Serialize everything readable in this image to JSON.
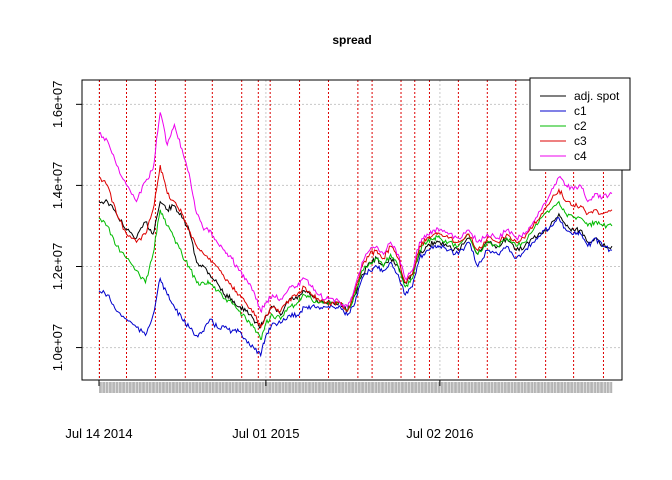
{
  "chart_data": {
    "type": "line",
    "title": "spread",
    "xlabel": "",
    "ylabel": "",
    "x_range": [
      "2014-07-14",
      "2017-06-30"
    ],
    "ylim": [
      9200000,
      16600000
    ],
    "y_ticks": [
      10000000,
      12000000,
      14000000,
      16000000
    ],
    "y_tick_labels": [
      "1.0e+07",
      "1.2e+07",
      "1.4e+07",
      "1.6e+07"
    ],
    "x_ticks": [
      "2014-07-14",
      "2015-07-01",
      "2016-07-02"
    ],
    "x_tick_labels": [
      "Jul 14 2014",
      "Jul 01 2015",
      "Jul 02 2016"
    ],
    "grid": true,
    "legend_position": "top-right",
    "colors": {
      "adj_spot": "#000000",
      "c1": "#0000cc",
      "c2": "#00bb00",
      "c3": "#dd0000",
      "c4": "#ee00ee",
      "roll_lines": "#dd0000",
      "grid": "#c8c8c8",
      "rug": "#b4b4b4"
    },
    "roll_dates": [
      "2014-07-15",
      "2014-09-10",
      "2014-11-10",
      "2015-01-12",
      "2015-03-10",
      "2015-05-11",
      "2015-06-15",
      "2015-07-10",
      "2015-09-10",
      "2015-11-10",
      "2016-01-11",
      "2016-02-10",
      "2016-04-11",
      "2016-05-10",
      "2016-06-10",
      "2016-08-10",
      "2016-10-10",
      "2016-12-09",
      "2017-02-10",
      "2017-04-10",
      "2017-06-12"
    ],
    "series": [
      {
        "name": "adj. spot",
        "x": [
          "2014-07-14",
          "2014-08-01",
          "2014-08-20",
          "2014-09-10",
          "2014-10-01",
          "2014-10-20",
          "2014-11-05",
          "2014-11-20",
          "2014-12-05",
          "2014-12-20",
          "2015-01-05",
          "2015-01-20",
          "2015-02-05",
          "2015-02-20",
          "2015-03-05",
          "2015-03-20",
          "2015-04-05",
          "2015-04-20",
          "2015-05-05",
          "2015-05-20",
          "2015-06-05",
          "2015-06-20",
          "2015-07-01",
          "2015-07-15",
          "2015-08-01",
          "2015-08-20",
          "2015-09-05",
          "2015-09-20",
          "2015-10-05",
          "2015-10-20",
          "2015-11-05",
          "2015-11-20",
          "2015-12-05",
          "2015-12-20",
          "2016-01-05",
          "2016-01-20",
          "2016-02-05",
          "2016-02-20",
          "2016-03-05",
          "2016-03-20",
          "2016-04-05",
          "2016-04-20",
          "2016-05-05",
          "2016-05-20",
          "2016-06-05",
          "2016-06-20",
          "2016-07-02",
          "2016-07-20",
          "2016-08-10",
          "2016-09-01",
          "2016-09-20",
          "2016-10-10",
          "2016-11-01",
          "2016-11-20",
          "2016-12-10",
          "2016-12-28",
          "2017-01-15",
          "2017-02-01",
          "2017-02-20",
          "2017-03-10",
          "2017-03-25",
          "2017-04-10",
          "2017-04-25",
          "2017-05-10",
          "2017-05-25",
          "2017-06-10",
          "2017-06-30"
        ],
        "values": [
          13600000,
          13600000,
          13300000,
          12900000,
          12700000,
          13100000,
          12800000,
          13600000,
          13400000,
          13500000,
          13200000,
          12900000,
          12100000,
          12000000,
          11800000,
          11600000,
          11300000,
          11200000,
          11000000,
          10900000,
          10700000,
          10500000,
          10800000,
          11000000,
          10800000,
          11200000,
          11200000,
          11400000,
          11300000,
          11100000,
          11100000,
          11100000,
          11100000,
          10900000,
          11300000,
          11800000,
          12100000,
          12200000,
          12000000,
          12200000,
          12000000,
          11600000,
          11800000,
          12300000,
          12500000,
          12600000,
          12600000,
          12500000,
          12400000,
          12700000,
          12300000,
          12600000,
          12500000,
          12700000,
          12400000,
          12500000,
          12700000,
          12800000,
          13000000,
          13300000,
          13000000,
          12900000,
          12900000,
          12600000,
          12700000,
          12500000,
          12500000
        ]
      },
      {
        "name": "c1",
        "x": [
          "2014-07-14",
          "2014-08-01",
          "2014-08-20",
          "2014-09-10",
          "2014-10-01",
          "2014-10-20",
          "2014-11-05",
          "2014-11-20",
          "2014-12-05",
          "2014-12-20",
          "2015-01-05",
          "2015-01-20",
          "2015-02-05",
          "2015-02-20",
          "2015-03-05",
          "2015-03-20",
          "2015-04-05",
          "2015-04-20",
          "2015-05-05",
          "2015-05-20",
          "2015-06-05",
          "2015-06-20",
          "2015-07-01",
          "2015-07-15",
          "2015-08-01",
          "2015-08-20",
          "2015-09-05",
          "2015-09-20",
          "2015-10-05",
          "2015-10-20",
          "2015-11-05",
          "2015-11-20",
          "2015-12-05",
          "2015-12-20",
          "2016-01-05",
          "2016-01-20",
          "2016-02-05",
          "2016-02-20",
          "2016-03-05",
          "2016-03-20",
          "2016-04-05",
          "2016-04-20",
          "2016-05-05",
          "2016-05-20",
          "2016-06-05",
          "2016-06-20",
          "2016-07-02",
          "2016-07-20",
          "2016-08-10",
          "2016-09-01",
          "2016-09-20",
          "2016-10-10",
          "2016-11-01",
          "2016-11-20",
          "2016-12-10",
          "2016-12-28",
          "2017-01-15",
          "2017-02-01",
          "2017-02-20",
          "2017-03-10",
          "2017-03-25",
          "2017-04-10",
          "2017-04-25",
          "2017-05-10",
          "2017-05-25",
          "2017-06-10",
          "2017-06-30"
        ],
        "values": [
          11400000,
          11300000,
          10900000,
          10700000,
          10500000,
          10300000,
          10800000,
          11700000,
          11300000,
          11000000,
          10700000,
          10500000,
          10300000,
          10400000,
          10700000,
          10500000,
          10500000,
          10400000,
          10400000,
          10200000,
          10000000,
          9800000,
          10300000,
          10600000,
          10600000,
          10800000,
          10800000,
          11000000,
          11000000,
          11000000,
          11000000,
          11000000,
          11000000,
          10800000,
          11100000,
          11700000,
          11900000,
          12000000,
          11900000,
          12100000,
          11800000,
          11300000,
          11500000,
          12200000,
          12400000,
          12500000,
          12500000,
          12400000,
          12300000,
          12600000,
          12000000,
          12400000,
          12300000,
          12500000,
          12200000,
          12400000,
          12600000,
          12800000,
          13000000,
          13200000,
          12900000,
          12800000,
          12800000,
          12500000,
          12700000,
          12500000,
          12400000
        ]
      },
      {
        "name": "c2",
        "x": [
          "2014-07-14",
          "2014-08-01",
          "2014-08-20",
          "2014-09-10",
          "2014-10-01",
          "2014-10-20",
          "2014-11-05",
          "2014-11-20",
          "2014-12-05",
          "2014-12-20",
          "2015-01-05",
          "2015-01-20",
          "2015-02-05",
          "2015-02-20",
          "2015-03-05",
          "2015-03-20",
          "2015-04-05",
          "2015-04-20",
          "2015-05-05",
          "2015-05-20",
          "2015-06-05",
          "2015-06-20",
          "2015-07-01",
          "2015-07-15",
          "2015-08-01",
          "2015-08-20",
          "2015-09-05",
          "2015-09-20",
          "2015-10-05",
          "2015-10-20",
          "2015-11-05",
          "2015-11-20",
          "2015-12-05",
          "2015-12-20",
          "2016-01-05",
          "2016-01-20",
          "2016-02-05",
          "2016-02-20",
          "2016-03-05",
          "2016-03-20",
          "2016-04-05",
          "2016-04-20",
          "2016-05-05",
          "2016-05-20",
          "2016-06-05",
          "2016-06-20",
          "2016-07-02",
          "2016-07-20",
          "2016-08-10",
          "2016-09-01",
          "2016-09-20",
          "2016-10-10",
          "2016-11-01",
          "2016-11-20",
          "2016-12-10",
          "2016-12-28",
          "2017-01-15",
          "2017-02-01",
          "2017-02-20",
          "2017-03-10",
          "2017-03-25",
          "2017-04-10",
          "2017-04-25",
          "2017-05-10",
          "2017-05-25",
          "2017-06-10",
          "2017-06-30"
        ],
        "values": [
          13200000,
          13000000,
          12500000,
          12200000,
          11900000,
          11600000,
          12300000,
          13400000,
          13000000,
          12700000,
          12300000,
          12000000,
          11600000,
          11600000,
          11600000,
          11400000,
          11200000,
          11100000,
          10900000,
          10700000,
          10500000,
          10200000,
          10600000,
          10800000,
          10700000,
          11000000,
          11100000,
          11300000,
          11200000,
          11100000,
          11100000,
          11100000,
          11100000,
          10900000,
          11300000,
          11900000,
          12100000,
          12200000,
          12000000,
          12300000,
          12000000,
          11500000,
          11700000,
          12400000,
          12600000,
          12700000,
          12700000,
          12600000,
          12500000,
          12800000,
          12300000,
          12600000,
          12500000,
          12700000,
          12500000,
          12600000,
          12900000,
          13200000,
          13400000,
          13600000,
          13300000,
          13200000,
          13200000,
          13000000,
          13100000,
          13000000,
          13000000
        ]
      },
      {
        "name": "c3",
        "x": [
          "2014-07-14",
          "2014-08-01",
          "2014-08-20",
          "2014-09-10",
          "2014-10-01",
          "2014-10-20",
          "2014-11-05",
          "2014-11-20",
          "2014-12-05",
          "2014-12-20",
          "2015-01-05",
          "2015-01-20",
          "2015-02-05",
          "2015-02-20",
          "2015-03-05",
          "2015-03-20",
          "2015-04-05",
          "2015-04-20",
          "2015-05-05",
          "2015-05-20",
          "2015-06-05",
          "2015-06-20",
          "2015-07-01",
          "2015-07-15",
          "2015-08-01",
          "2015-08-20",
          "2015-09-05",
          "2015-09-20",
          "2015-10-05",
          "2015-10-20",
          "2015-11-05",
          "2015-11-20",
          "2015-12-05",
          "2015-12-20",
          "2016-01-05",
          "2016-01-20",
          "2016-02-05",
          "2016-02-20",
          "2016-03-05",
          "2016-03-20",
          "2016-04-05",
          "2016-04-20",
          "2016-05-05",
          "2016-05-20",
          "2016-06-05",
          "2016-06-20",
          "2016-07-02",
          "2016-07-20",
          "2016-08-10",
          "2016-09-01",
          "2016-09-20",
          "2016-10-10",
          "2016-11-01",
          "2016-11-20",
          "2016-12-10",
          "2016-12-28",
          "2017-01-15",
          "2017-02-01",
          "2017-02-20",
          "2017-03-10",
          "2017-03-25",
          "2017-04-10",
          "2017-04-25",
          "2017-05-10",
          "2017-05-25",
          "2017-06-10",
          "2017-06-30"
        ],
        "values": [
          14200000,
          14000000,
          13300000,
          12800000,
          12600000,
          12800000,
          13400000,
          14500000,
          13800000,
          13600000,
          13300000,
          12900000,
          12500000,
          12300000,
          12200000,
          12000000,
          11700000,
          11500000,
          11300000,
          11100000,
          10900000,
          10500000,
          10800000,
          11000000,
          10900000,
          11200000,
          11300000,
          11500000,
          11300000,
          11200000,
          11100000,
          11100000,
          11100000,
          10900000,
          11400000,
          12000000,
          12300000,
          12400000,
          12200000,
          12500000,
          12200000,
          11600000,
          11800000,
          12500000,
          12700000,
          12800000,
          12800000,
          12700000,
          12600000,
          12800000,
          12400000,
          12700000,
          12600000,
          12800000,
          12600000,
          12700000,
          13000000,
          13300000,
          13600000,
          13900000,
          13600000,
          13500000,
          13500000,
          13300000,
          13400000,
          13300000,
          13400000
        ]
      },
      {
        "name": "c4",
        "x": [
          "2014-07-14",
          "2014-08-01",
          "2014-08-20",
          "2014-09-10",
          "2014-10-01",
          "2014-10-20",
          "2014-11-05",
          "2014-11-20",
          "2014-12-05",
          "2014-12-20",
          "2015-01-05",
          "2015-01-20",
          "2015-02-05",
          "2015-02-20",
          "2015-03-05",
          "2015-03-20",
          "2015-04-05",
          "2015-04-20",
          "2015-05-05",
          "2015-05-20",
          "2015-06-05",
          "2015-06-20",
          "2015-07-01",
          "2015-07-15",
          "2015-08-01",
          "2015-08-20",
          "2015-09-05",
          "2015-09-20",
          "2015-10-05",
          "2015-10-20",
          "2015-11-05",
          "2015-11-20",
          "2015-12-05",
          "2015-12-20",
          "2016-01-05",
          "2016-01-20",
          "2016-02-05",
          "2016-02-20",
          "2016-03-05",
          "2016-03-20",
          "2016-04-05",
          "2016-04-20",
          "2016-05-05",
          "2016-05-20",
          "2016-06-05",
          "2016-06-20",
          "2016-07-02",
          "2016-07-20",
          "2016-08-10",
          "2016-09-01",
          "2016-09-20",
          "2016-10-10",
          "2016-11-01",
          "2016-11-20",
          "2016-12-10",
          "2016-12-28",
          "2017-01-15",
          "2017-02-01",
          "2017-02-20",
          "2017-03-10",
          "2017-03-25",
          "2017-04-10",
          "2017-04-25",
          "2017-05-10",
          "2017-05-25",
          "2017-06-10",
          "2017-06-30"
        ],
        "values": [
          15300000,
          15100000,
          14500000,
          14000000,
          13600000,
          14100000,
          14400000,
          15800000,
          15000000,
          15500000,
          14900000,
          14300000,
          13300000,
          12900000,
          12900000,
          12600000,
          12400000,
          12200000,
          11900000,
          11700000,
          11400000,
          10900000,
          11100000,
          11300000,
          11200000,
          11500000,
          11500000,
          11700000,
          11500000,
          11300000,
          11200000,
          11200000,
          11100000,
          11000000,
          11500000,
          12100000,
          12400000,
          12500000,
          12300000,
          12600000,
          12300000,
          11700000,
          11900000,
          12600000,
          12800000,
          12900000,
          12900000,
          12800000,
          12700000,
          12900000,
          12600000,
          12800000,
          12700000,
          12900000,
          12700000,
          12800000,
          13100000,
          13400000,
          13800000,
          14200000,
          14000000,
          13900000,
          14000000,
          13600000,
          13800000,
          13700000,
          13800000
        ]
      }
    ]
  }
}
